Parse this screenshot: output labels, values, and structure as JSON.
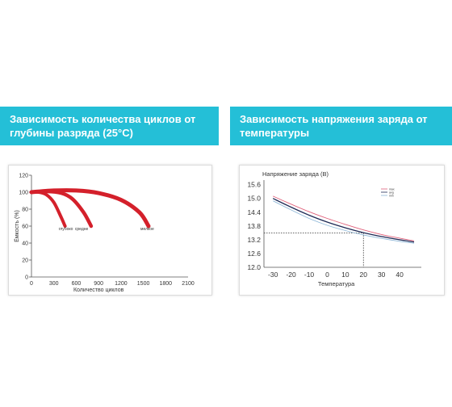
{
  "banners": {
    "left": "Зависимость количества циклов от глубины разряда (25°С)",
    "right": "Зависимость напряжения заряда от температуры"
  },
  "chart_data": [
    {
      "type": "line",
      "title": "",
      "xlabel": "Количество циклов",
      "ylabel": "Ёмкость (%)",
      "xlim": [
        0,
        2100
      ],
      "ylim": [
        0,
        120
      ],
      "xticks": [
        "0",
        "300",
        "600",
        "900",
        "1200",
        "1500",
        "1800",
        "2100"
      ],
      "yticks": [
        "0",
        "20",
        "40",
        "60",
        "80",
        "100",
        "120"
      ],
      "series_color": "#d4202b",
      "series": [
        {
          "name": "глубоко",
          "x": [
            0,
            100,
            200,
            300,
            400,
            450
          ],
          "y": [
            100,
            100,
            97,
            88,
            70,
            60
          ]
        },
        {
          "name": "средне",
          "x": [
            0,
            200,
            400,
            550,
            700,
            800
          ],
          "y": [
            100,
            101,
            99,
            92,
            76,
            60
          ]
        },
        {
          "name": "мелкое",
          "x": [
            0,
            300,
            600,
            900,
            1200,
            1450,
            1570
          ],
          "y": [
            100,
            102,
            102,
            99,
            91,
            76,
            60
          ]
        }
      ]
    },
    {
      "type": "line",
      "title": "Напряжение заряда (В)",
      "xlabel": "Температура",
      "ylabel": "",
      "xlim": [
        -35,
        52
      ],
      "ylim": [
        12.0,
        15.8
      ],
      "xticks": [
        "-30",
        "-20",
        "-10",
        "0",
        "10",
        "20",
        "30",
        "40"
      ],
      "yticks": [
        "12.0",
        "12.6",
        "13.2",
        "13.8",
        "14.4",
        "15.0",
        "15.6"
      ],
      "reference": {
        "x": 20,
        "y": 13.5
      },
      "series": [
        {
          "name": "max",
          "color": "#e0607a",
          "x": [
            -30,
            -20,
            -10,
            0,
            10,
            20,
            30,
            40,
            48
          ],
          "y": [
            15.1,
            14.75,
            14.42,
            14.13,
            13.87,
            13.63,
            13.43,
            13.27,
            13.15
          ]
        },
        {
          "name": "avg",
          "color": "#1e2a55",
          "x": [
            -30,
            -20,
            -10,
            0,
            10,
            20,
            30,
            40,
            48
          ],
          "y": [
            15.0,
            14.62,
            14.27,
            13.97,
            13.72,
            13.51,
            13.34,
            13.2,
            13.1
          ]
        },
        {
          "name": "min",
          "color": "#8fb8d8",
          "x": [
            -30,
            -20,
            -10,
            0,
            10,
            20,
            30,
            40,
            48
          ],
          "y": [
            14.9,
            14.5,
            14.13,
            13.83,
            13.6,
            13.41,
            13.26,
            13.13,
            13.05
          ]
        }
      ]
    }
  ]
}
